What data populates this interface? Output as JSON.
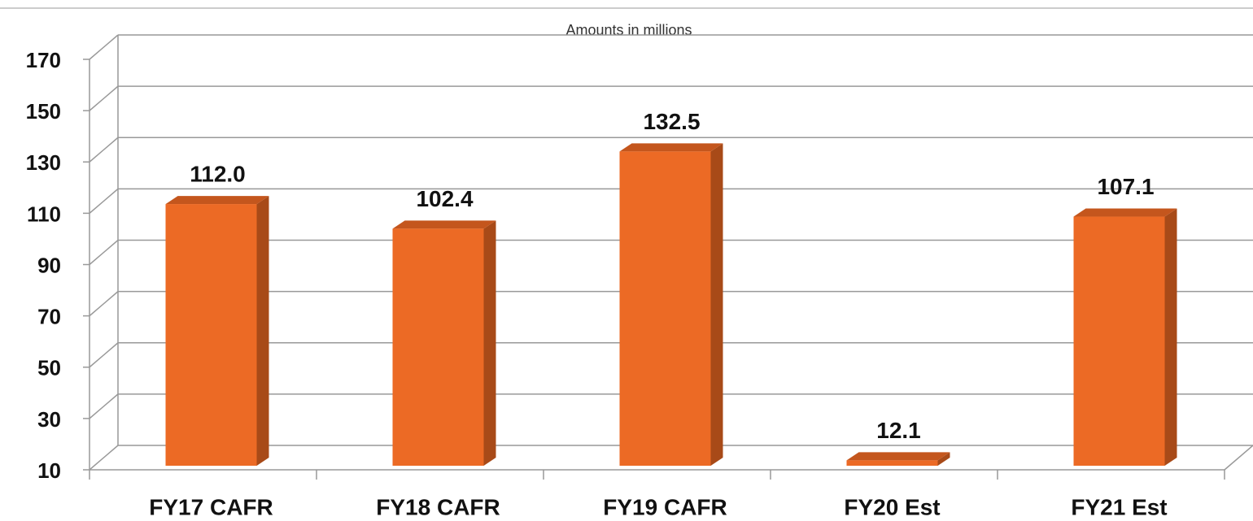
{
  "chart_data": {
    "type": "bar",
    "subtitle": "Amounts in millions",
    "categories": [
      "FY17 CAFR",
      "FY18 CAFR",
      "FY19 CAFR",
      "FY20 Est",
      "FY21 Est"
    ],
    "values": [
      112.0,
      102.4,
      132.5,
      12.1,
      107.1
    ],
    "value_labels": [
      "112.0",
      "102.4",
      "132.5",
      "12.1",
      "107.1"
    ],
    "color": "#ec6a25",
    "ylim": [
      10,
      170
    ],
    "yticks": [
      10,
      30,
      50,
      70,
      90,
      110,
      130,
      150,
      170
    ],
    "grid": true
  }
}
